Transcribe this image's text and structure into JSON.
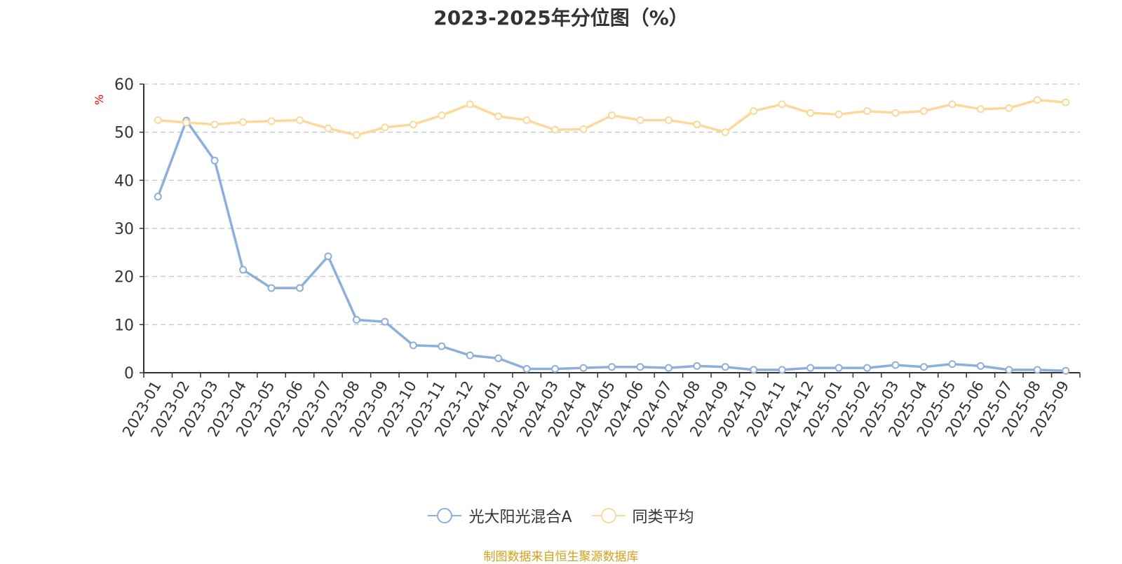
{
  "chart_data": {
    "type": "line",
    "title": "2023-2025年分位图（%）",
    "ylabel": "%",
    "xlabel": "",
    "ylim": [
      0,
      60
    ],
    "yticks": [
      0,
      10,
      20,
      30,
      40,
      50,
      60
    ],
    "grid": true,
    "legend_position": "bottom",
    "categories": [
      "2023-01",
      "2023-02",
      "2023-03",
      "2023-04",
      "2023-05",
      "2023-06",
      "2023-07",
      "2023-08",
      "2023-09",
      "2023-10",
      "2023-11",
      "2023-12",
      "2024-01",
      "2024-02",
      "2024-03",
      "2024-04",
      "2024-05",
      "2024-06",
      "2024-07",
      "2024-08",
      "2024-09",
      "2024-10",
      "2024-11",
      "2024-12",
      "2025-01",
      "2025-02",
      "2025-03",
      "2025-04",
      "2025-05",
      "2025-06",
      "2025-07",
      "2025-08",
      "2025-09"
    ],
    "series": [
      {
        "name": "光大阳光混合A",
        "color": "#8eaedb",
        "values": [
          36.6,
          52.4,
          44.1,
          21.4,
          17.6,
          17.6,
          24.2,
          11.0,
          10.6,
          5.7,
          5.5,
          3.6,
          3.0,
          0.8,
          0.8,
          1.0,
          1.2,
          1.2,
          1.0,
          1.4,
          1.2,
          0.6,
          0.6,
          1.0,
          1.0,
          1.0,
          1.6,
          1.2,
          1.8,
          1.4,
          0.6,
          0.6,
          0.4
        ]
      },
      {
        "name": "同类平均",
        "color": "#fcd99b",
        "values": [
          52.5,
          52.0,
          51.6,
          52.1,
          52.3,
          52.5,
          50.8,
          49.4,
          51.0,
          51.6,
          53.5,
          55.8,
          53.3,
          52.5,
          50.5,
          50.6,
          53.5,
          52.5,
          52.5,
          51.6,
          50.0,
          54.4,
          55.8,
          54.0,
          53.7,
          54.4,
          54.0,
          54.4,
          55.8,
          54.8,
          55.0,
          56.7,
          56.2
        ]
      }
    ]
  },
  "footer": "制图数据来自恒生聚源数据库"
}
